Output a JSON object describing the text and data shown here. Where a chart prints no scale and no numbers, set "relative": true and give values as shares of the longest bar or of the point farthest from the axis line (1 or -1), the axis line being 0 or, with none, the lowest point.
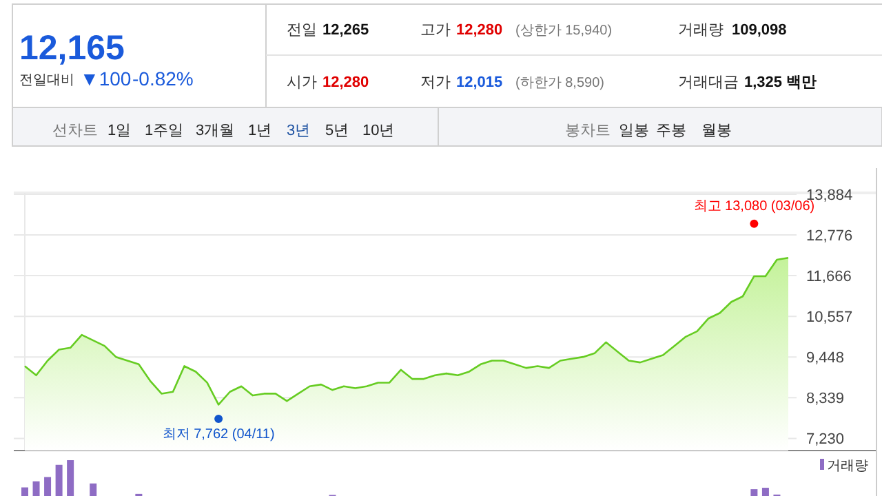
{
  "chart_data": [
    {
      "type": "other",
      "annotations": [
        "12,165",
        "전일대비",
        "▼100",
        "-0.82%",
        "전일",
        "12,265",
        "고가",
        "12,280",
        "(상한가 15,940)",
        "거래량",
        "109,098",
        "시가",
        "12,280",
        "저가",
        "12,015",
        "(하한가 8,590)",
        "거래대금",
        "1,325 백만",
        "선차트",
        "1일",
        "1주일",
        "3개월",
        "1년",
        "3년",
        "5년",
        "10년",
        "봉차트",
        "일봉",
        "주봉",
        "월봉"
      ]
    },
    {
      "type": "area",
      "categories": [
        null,
        null,
        null,
        null,
        null,
        null,
        null,
        null,
        null,
        null,
        null,
        null,
        null,
        null,
        null,
        null,
        null,
        null,
        null,
        null,
        null,
        null,
        null,
        null,
        null,
        null,
        null,
        null,
        null,
        null,
        null,
        null,
        null,
        null,
        null,
        null,
        null,
        null,
        null,
        null,
        null,
        null,
        null,
        null,
        null,
        null,
        null,
        null,
        null,
        null,
        null,
        null,
        null,
        null,
        null,
        null,
        null,
        null,
        null,
        null,
        null,
        null,
        null,
        null,
        null,
        null,
        null,
        null
      ],
      "ylim": [
        6900,
        13920
      ],
      "yticks": [
        {
          "value": 7230,
          "label": "7,230"
        },
        {
          "value": 8339,
          "label": "8,339"
        },
        {
          "value": 9448,
          "label": "9,448"
        },
        {
          "value": 10557,
          "label": "10,557"
        },
        {
          "value": 11666,
          "label": "11,666"
        },
        {
          "value": 12776,
          "label": "12,776"
        },
        {
          "value": 13884,
          "label": "13,884"
        }
      ],
      "grid": "y",
      "tick_labels": "y",
      "series": [
        {
          "type": "area",
          "color": "#66cc22",
          "values": [
            9200,
            8950,
            9350,
            9650,
            9700,
            10050,
            9900,
            9750,
            9450,
            9350,
            9250,
            8800,
            8450,
            8500,
            9200,
            9050,
            8750,
            8150,
            8500,
            8650,
            8400,
            8450,
            8450,
            8250,
            8450,
            8650,
            8700,
            8550,
            8650,
            8600,
            8650,
            8750,
            8750,
            9100,
            8850,
            8850,
            8950,
            9000,
            8950,
            9050,
            9250,
            9350,
            9350,
            9250,
            9150,
            9200,
            9150,
            9350,
            9400,
            9450,
            9550,
            9850,
            9600,
            9350,
            9300,
            9400,
            9500,
            9750,
            10000,
            10150,
            10500,
            10650,
            10950,
            11100,
            11650,
            11650,
            12100,
            12150
          ]
        },
        {
          "type": "scatter",
          "marker": "circle",
          "color": "#ff0000",
          "values": [
            null,
            null,
            null,
            null,
            null,
            null,
            null,
            null,
            null,
            null,
            null,
            null,
            null,
            null,
            null,
            null,
            null,
            null,
            null,
            null,
            null,
            null,
            null,
            null,
            null,
            null,
            null,
            null,
            null,
            null,
            null,
            null,
            null,
            null,
            null,
            null,
            null,
            null,
            null,
            null,
            null,
            null,
            null,
            null,
            null,
            null,
            null,
            null,
            null,
            null,
            null,
            null,
            null,
            null,
            null,
            null,
            null,
            null,
            null,
            null,
            null,
            null,
            null,
            null,
            13080,
            null,
            null,
            null
          ],
          "value_labels": [
            null,
            null,
            null,
            null,
            null,
            null,
            null,
            null,
            null,
            null,
            null,
            null,
            null,
            null,
            null,
            null,
            null,
            null,
            null,
            null,
            null,
            null,
            null,
            null,
            null,
            null,
            null,
            null,
            null,
            null,
            null,
            null,
            null,
            null,
            null,
            null,
            null,
            null,
            null,
            null,
            null,
            null,
            null,
            null,
            null,
            null,
            null,
            null,
            null,
            null,
            null,
            null,
            null,
            null,
            null,
            null,
            null,
            null,
            null,
            null,
            null,
            null,
            null,
            null,
            "최고 13,080 (03/06)",
            null,
            null,
            null
          ]
        },
        {
          "type": "scatter",
          "marker": "circle",
          "color": "#1155cc",
          "values": [
            null,
            null,
            null,
            null,
            null,
            null,
            null,
            null,
            null,
            null,
            null,
            null,
            null,
            null,
            null,
            null,
            null,
            7762,
            null,
            null,
            null,
            null,
            null,
            null,
            null,
            null,
            null,
            null,
            null,
            null,
            null,
            null,
            null,
            null,
            null,
            null,
            null,
            null,
            null,
            null,
            null,
            null,
            null,
            null,
            null,
            null,
            null,
            null,
            null,
            null,
            null,
            null,
            null,
            null,
            null,
            null,
            null,
            null,
            null,
            null,
            null,
            null,
            null,
            null,
            null,
            null,
            null,
            null
          ],
          "value_labels": [
            null,
            null,
            null,
            null,
            null,
            null,
            null,
            null,
            null,
            null,
            null,
            null,
            null,
            null,
            null,
            null,
            null,
            "최저 7,762 (04/11)",
            null,
            null,
            null,
            null,
            null,
            null,
            null,
            null,
            null,
            null,
            null,
            null,
            null,
            null,
            null,
            null,
            null,
            null,
            null,
            null,
            null,
            null,
            null,
            null,
            null,
            null,
            null,
            null,
            null,
            null,
            null,
            null,
            null,
            null,
            null,
            null,
            null,
            null,
            null,
            null,
            null,
            null,
            null,
            null,
            null,
            null,
            null,
            null,
            null,
            null
          ]
        }
      ]
    },
    {
      "type": "bar",
      "relative": true,
      "legend": "top right",
      "tick_labels": false,
      "categories": [
        null,
        null,
        null,
        null,
        null,
        null,
        null,
        null,
        null,
        null,
        null,
        null,
        null,
        null,
        null,
        null,
        null,
        null,
        null,
        null,
        null,
        null,
        null,
        null,
        null,
        null,
        null,
        null,
        null,
        null,
        null,
        null,
        null,
        null,
        null,
        null,
        null,
        null,
        null,
        null,
        null,
        null,
        null,
        null,
        null,
        null,
        null,
        null,
        null,
        null,
        null,
        null,
        null,
        null,
        null,
        null,
        null,
        null,
        null,
        null,
        null,
        null,
        null,
        null,
        null,
        null,
        null,
        null
      ],
      "series": [
        {
          "name": "거래량",
          "color": "#8e6cc4",
          "values": [
            0.24,
            0.41,
            0.53,
            0.87,
            1,
            null,
            0.35,
            null,
            null,
            null,
            0.06,
            null,
            null,
            null,
            null,
            null,
            null,
            null,
            null,
            null,
            null,
            null,
            null,
            null,
            null,
            null,
            null,
            0.03,
            null,
            null,
            null,
            null,
            null,
            null,
            null,
            null,
            null,
            null,
            null,
            null,
            null,
            null,
            null,
            null,
            null,
            null,
            null,
            null,
            null,
            null,
            null,
            null,
            null,
            null,
            null,
            null,
            null,
            null,
            null,
            null,
            null,
            null,
            null,
            null,
            0.19,
            0.23,
            0.04,
            null
          ]
        }
      ]
    }
  ]
}
